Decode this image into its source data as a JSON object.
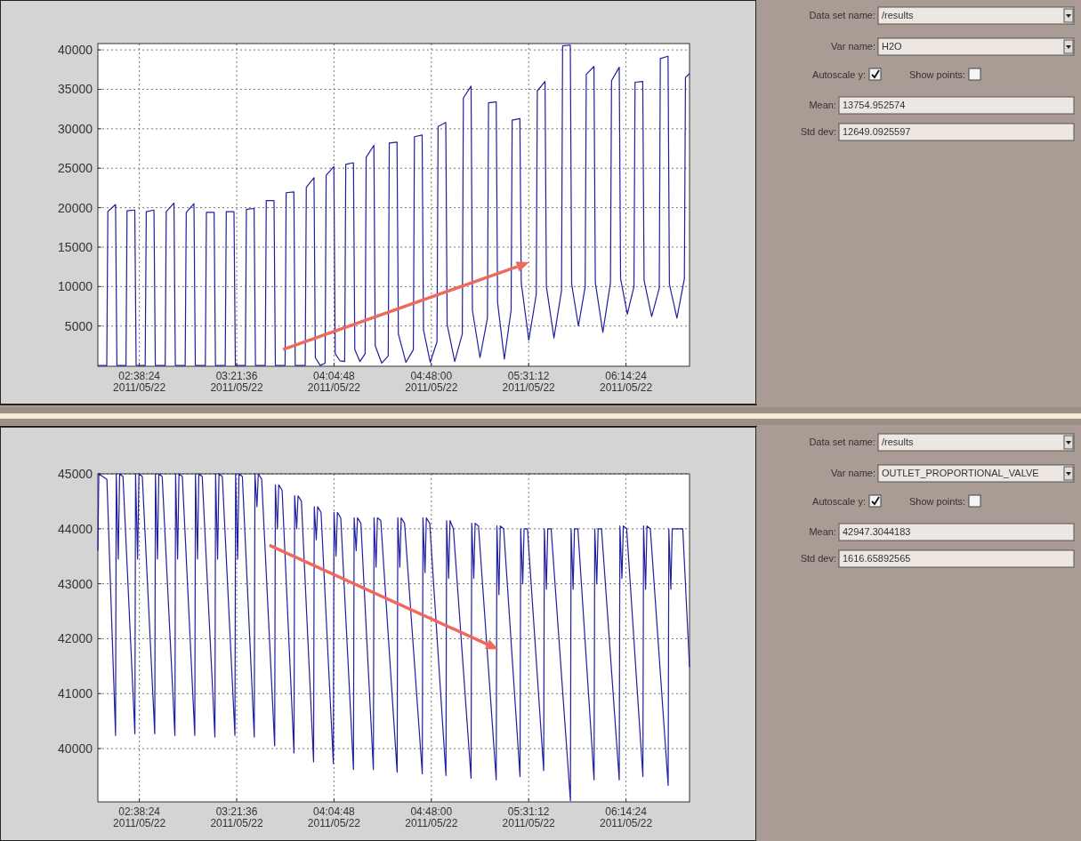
{
  "chart_data": [
    {
      "type": "line",
      "grid": true,
      "xlim": [
        "2011-05-22T02:19:59",
        "2011-05-22T06:42:36"
      ],
      "ylim": [
        -100,
        40800
      ],
      "xticks": [
        {
          "value": "2011-05-22T02:38:24",
          "label": "02:38:24\n2011/05/22"
        },
        {
          "value": "2011-05-22T03:21:36",
          "label": "03:21:36\n2011/05/22"
        },
        {
          "value": "2011-05-22T04:04:48",
          "label": "04:04:48\n2011/05/22"
        },
        {
          "value": "2011-05-22T04:48:00",
          "label": "04:48:00\n2011/05/22"
        },
        {
          "value": "2011-05-22T05:31:12",
          "label": "05:31:12\n2011/05/22"
        },
        {
          "value": "2011-05-22T06:14:24",
          "label": "06:14:24\n2011/05/22"
        }
      ],
      "yticks": [
        5000,
        10000,
        15000,
        20000,
        25000,
        30000,
        35000,
        40000
      ],
      "x": [
        "2011-05-22T02:19:59",
        "2011-05-22T02:23:56",
        "2011-05-22T02:24:25",
        "2011-05-22T02:27:50",
        "2011-05-22T02:28:26",
        "2011-05-22T02:30:29",
        "2011-05-22T02:32:28",
        "2011-05-22T02:32:56",
        "2011-05-22T02:36:22",
        "2011-05-22T02:36:58",
        "2011-05-22T02:39:00",
        "2011-05-22T02:40:59",
        "2011-05-22T02:41:28",
        "2011-05-22T02:44:53",
        "2011-05-22T02:45:29",
        "2011-05-22T02:47:42",
        "2011-05-22T02:49:52",
        "2011-05-22T02:50:20",
        "2011-05-22T02:53:46",
        "2011-05-22T02:54:22",
        "2011-05-22T02:56:35",
        "2011-05-22T02:58:44",
        "2011-05-22T02:59:13",
        "2011-05-22T03:02:38",
        "2011-05-22T03:03:14",
        "2011-05-22T03:05:28",
        "2011-05-22T03:07:41",
        "2011-05-22T03:08:10",
        "2011-05-22T03:11:35",
        "2011-05-22T03:12:11",
        "2011-05-22T03:14:20",
        "2011-05-22T03:16:30",
        "2011-05-22T03:16:59",
        "2011-05-22T03:20:24",
        "2011-05-22T03:21:00",
        "2011-05-22T03:23:13",
        "2011-05-22T03:25:26",
        "2011-05-22T03:25:55",
        "2011-05-22T03:29:20",
        "2011-05-22T03:29:56",
        "2011-05-22T03:32:06",
        "2011-05-22T03:34:16",
        "2011-05-22T03:34:44",
        "2011-05-22T03:38:10",
        "2011-05-22T03:38:46",
        "2011-05-22T03:40:55",
        "2011-05-22T03:43:05",
        "2011-05-22T03:43:34",
        "2011-05-22T03:46:59",
        "2011-05-22T03:47:35",
        "2011-05-22T03:49:48",
        "2011-05-22T03:52:01",
        "2011-05-22T03:52:30",
        "2011-05-22T03:55:55",
        "2011-05-22T03:56:31",
        "2011-05-22T03:58:41",
        "2011-05-22T04:00:50",
        "2011-05-22T04:01:19",
        "2011-05-22T04:04:44",
        "2011-05-22T04:05:20",
        "2011-05-22T04:07:26",
        "2011-05-22T04:09:32",
        "2011-05-22T04:10:01",
        "2011-05-22T04:13:26",
        "2011-05-22T04:14:02",
        "2011-05-22T04:16:19",
        "2011-05-22T04:18:36",
        "2011-05-22T04:19:05",
        "2011-05-22T04:22:30",
        "2011-05-22T04:23:06",
        "2011-05-22T04:25:59",
        "2011-05-22T04:28:52",
        "2011-05-22T04:29:20",
        "2011-05-22T04:32:46",
        "2011-05-22T04:33:22",
        "2011-05-22T04:36:43",
        "2011-05-22T04:40:01",
        "2011-05-22T04:40:30",
        "2011-05-22T04:43:55",
        "2011-05-22T04:44:31",
        "2011-05-22T04:47:31",
        "2011-05-22T04:50:31",
        "2011-05-22T04:51:00",
        "2011-05-22T04:54:25",
        "2011-05-22T04:55:01",
        "2011-05-22T04:58:23",
        "2011-05-22T05:01:44",
        "2011-05-22T05:02:13",
        "2011-05-22T05:05:38",
        "2011-05-22T05:06:14",
        "2011-05-22T05:09:36",
        "2011-05-22T05:12:54",
        "2011-05-22T05:13:23",
        "2011-05-22T05:16:48",
        "2011-05-22T05:17:24",
        "2011-05-22T05:20:24",
        "2011-05-22T05:23:24",
        "2011-05-22T05:23:53",
        "2011-05-22T05:27:18",
        "2011-05-22T05:27:54",
        "2011-05-22T05:31:16",
        "2011-05-22T05:34:34",
        "2011-05-22T05:35:02",
        "2011-05-22T05:38:28",
        "2011-05-22T05:39:04",
        "2011-05-22T05:42:25",
        "2011-05-22T05:45:47",
        "2011-05-22T05:46:16",
        "2011-05-22T05:49:41",
        "2011-05-22T05:50:17",
        "2011-05-22T05:53:17",
        "2011-05-22T05:56:17",
        "2011-05-22T05:56:46",
        "2011-05-22T06:00:11",
        "2011-05-22T06:00:47",
        "2011-05-22T06:04:08",
        "2011-05-22T06:07:30",
        "2011-05-22T06:07:59",
        "2011-05-22T06:11:24",
        "2011-05-22T06:12:00",
        "2011-05-22T06:15:00",
        "2011-05-22T06:17:56",
        "2011-05-22T06:18:25",
        "2011-05-22T06:21:50",
        "2011-05-22T06:22:26",
        "2011-05-22T06:25:48",
        "2011-05-22T06:29:10",
        "2011-05-22T06:29:38",
        "2011-05-22T06:33:04",
        "2011-05-22T06:33:40",
        "2011-05-22T06:37:01",
        "2011-05-22T06:40:19",
        "2011-05-22T06:40:48",
        "2011-05-22T06:42:36"
      ],
      "series": [
        {
          "color": "#1f1fa0",
          "values": [
            0,
            0,
            19500,
            20400,
            0,
            0,
            0,
            19600,
            19700,
            0,
            0,
            0,
            19500,
            19700,
            0,
            0,
            0,
            19500,
            20600,
            0,
            0,
            0,
            19400,
            20500,
            0,
            0,
            0,
            19400,
            19400,
            0,
            0,
            0,
            19500,
            19500,
            0,
            0,
            0,
            19800,
            19900,
            0,
            0,
            0,
            20900,
            20900,
            0,
            0,
            0,
            21900,
            22000,
            0,
            0,
            0,
            22600,
            23800,
            1000,
            0,
            300,
            24100,
            25200,
            1500,
            600,
            500,
            25500,
            25700,
            2000,
            500,
            1500,
            26400,
            27900,
            2500,
            300,
            1200,
            28200,
            28300,
            4000,
            400,
            2000,
            29000,
            29200,
            4500,
            400,
            3000,
            30300,
            30800,
            5200,
            500,
            4000,
            33900,
            35400,
            7000,
            1000,
            6000,
            33300,
            33400,
            8000,
            800,
            7000,
            31100,
            31300,
            10500,
            3200,
            9000,
            34800,
            36000,
            10000,
            3500,
            9500,
            40500,
            40600,
            10300,
            5000,
            10000,
            36900,
            37900,
            10500,
            4200,
            10500,
            36100,
            37800,
            11000,
            6500,
            10000,
            35900,
            36000,
            10800,
            6200,
            9800,
            38900,
            39200,
            10300,
            6000,
            11000,
            36500,
            37000
          ]
        }
      ]
    },
    {
      "type": "other",
      "annotations": [
        "Data set name:",
        "/results",
        "Var name:",
        "H2O",
        "Autoscale y:",
        "Show points:",
        "Mean:",
        "13754.952574",
        "Std dev:",
        "12649.0925597"
      ]
    },
    {
      "type": "line",
      "grid": true,
      "xlim": [
        "2011-05-22T02:19:59",
        "2011-05-22T06:42:36"
      ],
      "ylim": [
        39030,
        45000
      ],
      "xticks": [
        {
          "value": "2011-05-22T02:38:24",
          "label": "02:38:24\n2011/05/22"
        },
        {
          "value": "2011-05-22T03:21:36",
          "label": "03:21:36\n2011/05/22"
        },
        {
          "value": "2011-05-22T04:04:48",
          "label": "04:04:48\n2011/05/22"
        },
        {
          "value": "2011-05-22T04:48:00",
          "label": "04:48:00\n2011/05/22"
        },
        {
          "value": "2011-05-22T05:31:12",
          "label": "05:31:12\n2011/05/22"
        },
        {
          "value": "2011-05-22T06:14:24",
          "label": "06:14:24\n2011/05/22"
        }
      ],
      "yticks": [
        40000,
        41000,
        42000,
        43000,
        44000,
        45000
      ],
      "x": [
        "2011-05-22T02:19:59",
        "2011-05-22T02:20:24",
        "2011-05-22T02:24:00",
        "2011-05-22T02:27:50",
        "2011-05-22T02:28:08",
        "2011-05-22T02:29:02",
        "2011-05-22T02:29:38",
        "2011-05-22T02:31:08",
        "2011-05-22T02:36:25",
        "2011-05-22T02:36:43",
        "2011-05-22T02:37:37",
        "2011-05-22T02:38:13",
        "2011-05-22T02:39:43",
        "2011-05-22T02:45:14",
        "2011-05-22T02:45:32",
        "2011-05-22T02:46:26",
        "2011-05-22T02:47:02",
        "2011-05-22T02:48:32",
        "2011-05-22T02:54:11",
        "2011-05-22T02:54:29",
        "2011-05-22T02:55:23",
        "2011-05-22T02:55:59",
        "2011-05-22T02:57:29",
        "2011-05-22T03:03:00",
        "2011-05-22T03:03:18",
        "2011-05-22T03:04:12",
        "2011-05-22T03:04:48",
        "2011-05-22T03:06:18",
        "2011-05-22T03:11:56",
        "2011-05-22T03:12:14",
        "2011-05-22T03:13:08",
        "2011-05-22T03:13:44",
        "2011-05-22T03:15:14",
        "2011-05-22T03:20:49",
        "2011-05-22T03:21:07",
        "2011-05-22T03:22:01",
        "2011-05-22T03:22:37",
        "2011-05-22T03:24:07",
        "2011-05-22T03:29:24",
        "2011-05-22T03:29:42",
        "2011-05-22T03:30:36",
        "2011-05-22T03:31:12",
        "2011-05-22T03:32:42",
        "2011-05-22T03:38:28",
        "2011-05-22T03:38:46",
        "2011-05-22T03:39:40",
        "2011-05-22T03:40:16",
        "2011-05-22T03:41:46",
        "2011-05-22T03:47:02",
        "2011-05-22T03:47:20",
        "2011-05-22T03:48:14",
        "2011-05-22T03:48:50",
        "2011-05-22T03:50:20",
        "2011-05-22T03:55:44",
        "2011-05-22T03:56:02",
        "2011-05-22T03:56:56",
        "2011-05-22T03:57:32",
        "2011-05-22T03:59:02",
        "2011-05-22T04:04:30",
        "2011-05-22T04:04:48",
        "2011-05-22T04:05:42",
        "2011-05-22T04:06:18",
        "2011-05-22T04:07:48",
        "2011-05-22T04:13:26",
        "2011-05-22T04:13:44",
        "2011-05-22T04:14:38",
        "2011-05-22T04:15:14",
        "2011-05-22T04:16:44",
        "2011-05-22T04:22:16",
        "2011-05-22T04:22:34",
        "2011-05-22T04:23:28",
        "2011-05-22T04:24:04",
        "2011-05-22T04:25:34",
        "2011-05-22T04:32:49",
        "2011-05-22T04:33:07",
        "2011-05-22T04:34:01",
        "2011-05-22T04:34:37",
        "2011-05-22T04:36:07",
        "2011-05-22T04:43:59",
        "2011-05-22T04:44:17",
        "2011-05-22T04:45:11",
        "2011-05-22T04:45:47",
        "2011-05-22T04:47:17",
        "2011-05-22T04:54:29",
        "2011-05-22T04:54:47",
        "2011-05-22T04:55:41",
        "2011-05-22T04:56:17",
        "2011-05-22T04:57:47",
        "2011-05-22T05:05:38",
        "2011-05-22T05:05:56",
        "2011-05-22T05:06:50",
        "2011-05-22T05:07:26",
        "2011-05-22T05:08:56",
        "2011-05-22T05:16:48",
        "2011-05-22T05:17:06",
        "2011-05-22T05:18:00",
        "2011-05-22T05:18:36",
        "2011-05-22T05:20:06",
        "2011-05-22T05:27:22",
        "2011-05-22T05:27:40",
        "2011-05-22T05:28:34",
        "2011-05-22T05:29:10",
        "2011-05-22T05:30:40",
        "2011-05-22T05:37:52",
        "2011-05-22T05:38:10",
        "2011-05-22T05:39:04",
        "2011-05-22T05:39:40",
        "2011-05-22T05:41:10",
        "2011-05-22T05:49:44",
        "2011-05-22T05:50:02",
        "2011-05-22T05:50:56",
        "2011-05-22T05:51:32",
        "2011-05-22T05:53:02",
        "2011-05-22T06:00:14",
        "2011-05-22T06:00:32",
        "2011-05-22T06:01:26",
        "2011-05-22T06:02:02",
        "2011-05-22T06:03:32",
        "2011-05-22T06:11:24",
        "2011-05-22T06:11:42",
        "2011-05-22T06:12:36",
        "2011-05-22T06:13:12",
        "2011-05-22T06:14:42",
        "2011-05-22T06:21:54",
        "2011-05-22T06:22:12",
        "2011-05-22T06:23:06",
        "2011-05-22T06:23:42",
        "2011-05-22T06:25:12",
        "2011-05-22T06:33:07",
        "2011-05-22T06:33:25",
        "2011-05-22T06:34:19",
        "2011-05-22T06:34:55",
        "2011-05-22T06:36:25",
        "2011-05-22T06:39:36",
        "2011-05-22T06:42:36"
      ],
      "series": [
        {
          "color": "#1f1fa0",
          "values": [
            43600,
            45000,
            44900,
            40240,
            45000,
            43450,
            45000,
            44950,
            40270,
            45000,
            43450,
            45000,
            44950,
            40270,
            45000,
            43450,
            45000,
            44950,
            40240,
            45000,
            43450,
            45000,
            44950,
            40240,
            45000,
            43450,
            45000,
            44950,
            40210,
            45000,
            43450,
            45000,
            44950,
            40240,
            45000,
            43450,
            45000,
            44950,
            40210,
            45000,
            44400,
            45000,
            44900,
            40050,
            44800,
            44000,
            44800,
            44700,
            39920,
            44600,
            44000,
            44600,
            44500,
            39760,
            44400,
            43800,
            44400,
            44300,
            39730,
            44300,
            43500,
            44300,
            44200,
            39620,
            44200,
            43600,
            44200,
            44100,
            39620,
            44200,
            43300,
            44200,
            44150,
            39570,
            44200,
            43300,
            44200,
            44100,
            39540,
            44200,
            43200,
            44200,
            44100,
            39510,
            44150,
            43100,
            44150,
            44000,
            39460,
            44100,
            43100,
            44100,
            44050,
            39430,
            44050,
            42800,
            44050,
            44000,
            39490,
            44000,
            43000,
            44000,
            44000,
            39600,
            44000,
            42900,
            44000,
            44000,
            39050,
            44000,
            42900,
            44000,
            44000,
            39430,
            44000,
            43000,
            44000,
            44000,
            39430,
            44050,
            43100,
            44050,
            44000,
            39490,
            44050,
            42900,
            44050,
            44000,
            39330,
            44000,
            42900,
            44000,
            44000,
            44000,
            41480
          ]
        }
      ]
    },
    {
      "type": "other",
      "annotations": [
        "Data set name:",
        "/results",
        "Var name:",
        "OUTLET_PROPORTIONAL_VALVE",
        "Autoscale y:",
        "Show points:",
        "Mean:",
        "42947.3044183",
        "Std dev:",
        "1616.65892565"
      ]
    }
  ]
}
